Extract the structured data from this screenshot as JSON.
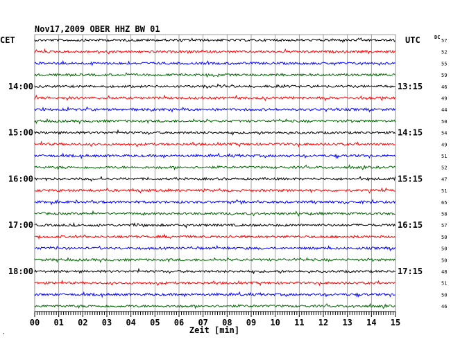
{
  "chart_data": {
    "type": "line",
    "title": "Nov17,2009   OBER HHZ BW 01",
    "left_axis_label": "CET",
    "right_axis_label": "UTC",
    "dc_label": "DC",
    "xlabel": "Zeit [min]",
    "x_ticks": [
      "00",
      "01",
      "02",
      "03",
      "04",
      "05",
      "06",
      "07",
      "08",
      "09",
      "10",
      "11",
      "12",
      "13",
      "14",
      "15"
    ],
    "xlim": [
      0,
      15
    ],
    "grid": true,
    "footnote": "′",
    "left_time_labels": [
      "14:00",
      "15:00",
      "16:00",
      "17:00",
      "18:00"
    ],
    "right_time_labels": [
      "13:15",
      "14:15",
      "15:15",
      "16:15",
      "17:15"
    ],
    "series_colors": [
      "#000000",
      "#ff0000",
      "#0000ff",
      "#006400"
    ],
    "traces": [
      {
        "color": "#000000",
        "dc": "57"
      },
      {
        "color": "#ff0000",
        "dc": "52"
      },
      {
        "color": "#0000ff",
        "dc": "55"
      },
      {
        "color": "#006400",
        "dc": "59"
      },
      {
        "color": "#000000",
        "dc": "46"
      },
      {
        "color": "#ff0000",
        "dc": "49"
      },
      {
        "color": "#0000ff",
        "dc": "44"
      },
      {
        "color": "#006400",
        "dc": "50"
      },
      {
        "color": "#000000",
        "dc": "54"
      },
      {
        "color": "#ff0000",
        "dc": "49"
      },
      {
        "color": "#0000ff",
        "dc": "51"
      },
      {
        "color": "#006400",
        "dc": "52"
      },
      {
        "color": "#000000",
        "dc": "47"
      },
      {
        "color": "#ff0000",
        "dc": "51"
      },
      {
        "color": "#0000ff",
        "dc": "65"
      },
      {
        "color": "#006400",
        "dc": "58"
      },
      {
        "color": "#000000",
        "dc": "57"
      },
      {
        "color": "#ff0000",
        "dc": "50"
      },
      {
        "color": "#0000ff",
        "dc": "50"
      },
      {
        "color": "#006400",
        "dc": "50"
      },
      {
        "color": "#000000",
        "dc": "48"
      },
      {
        "color": "#ff0000",
        "dc": "51"
      },
      {
        "color": "#0000ff",
        "dc": "50"
      },
      {
        "color": "#006400",
        "dc": "46"
      }
    ]
  }
}
